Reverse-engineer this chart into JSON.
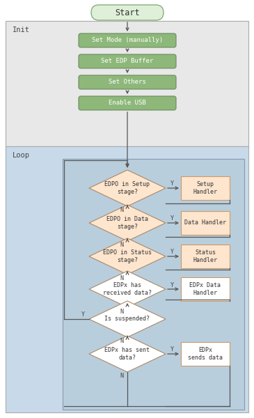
{
  "title": "Start",
  "init_label": "Init",
  "loop_label": "Loop",
  "init_boxes": [
    "Set Mode (manually)",
    "Set EDP Buffer",
    "Set Others",
    "Enable USB"
  ],
  "diamonds": [
    {
      "text": "EDPO in Setup\nstage?",
      "handler": "Setup\nHandler",
      "handler_color": "#fde5ce",
      "diamond_color": "#fde5ce"
    },
    {
      "text": "EDPO in Data\nstage?",
      "handler": "Data Handler",
      "handler_color": "#fde5ce",
      "diamond_color": "#fde5ce"
    },
    {
      "text": "EDPO in Status\nstage?",
      "handler": "Status\nHandler",
      "handler_color": "#fde5ce",
      "diamond_color": "#fde5ce"
    },
    {
      "text": "EDPx has\nreceived data?",
      "handler": "EDPx Data\nHandler",
      "handler_color": "#ffffff",
      "diamond_color": "#ffffff"
    },
    {
      "text": "Is suspended?",
      "handler": null,
      "handler_color": null,
      "diamond_color": "#ffffff"
    },
    {
      "text": "EDPx has sent\ndata?",
      "handler": "EDPx\nsends data",
      "handler_color": "#ffffff",
      "diamond_color": "#ffffff"
    }
  ],
  "start_color": "#dff0d8",
  "start_border": "#8aaa80",
  "init_box_color": "#8db87a",
  "init_box_border": "#6a8a60",
  "init_bg": "#e8e8e8",
  "init_border": "#aaaaaa",
  "loop_bg": "#c8daea",
  "loop_border": "#aaaaaa",
  "inner_loop_bg": "#b8cedd",
  "inner_loop_border": "#8899aa",
  "arrow_color": "#555555",
  "diamond_border": "#aa8866",
  "handler_border": "#cc9966",
  "text_color": "#222222",
  "label_color": "#444444",
  "font_size": 6.5,
  "title_font_size": 8.5
}
